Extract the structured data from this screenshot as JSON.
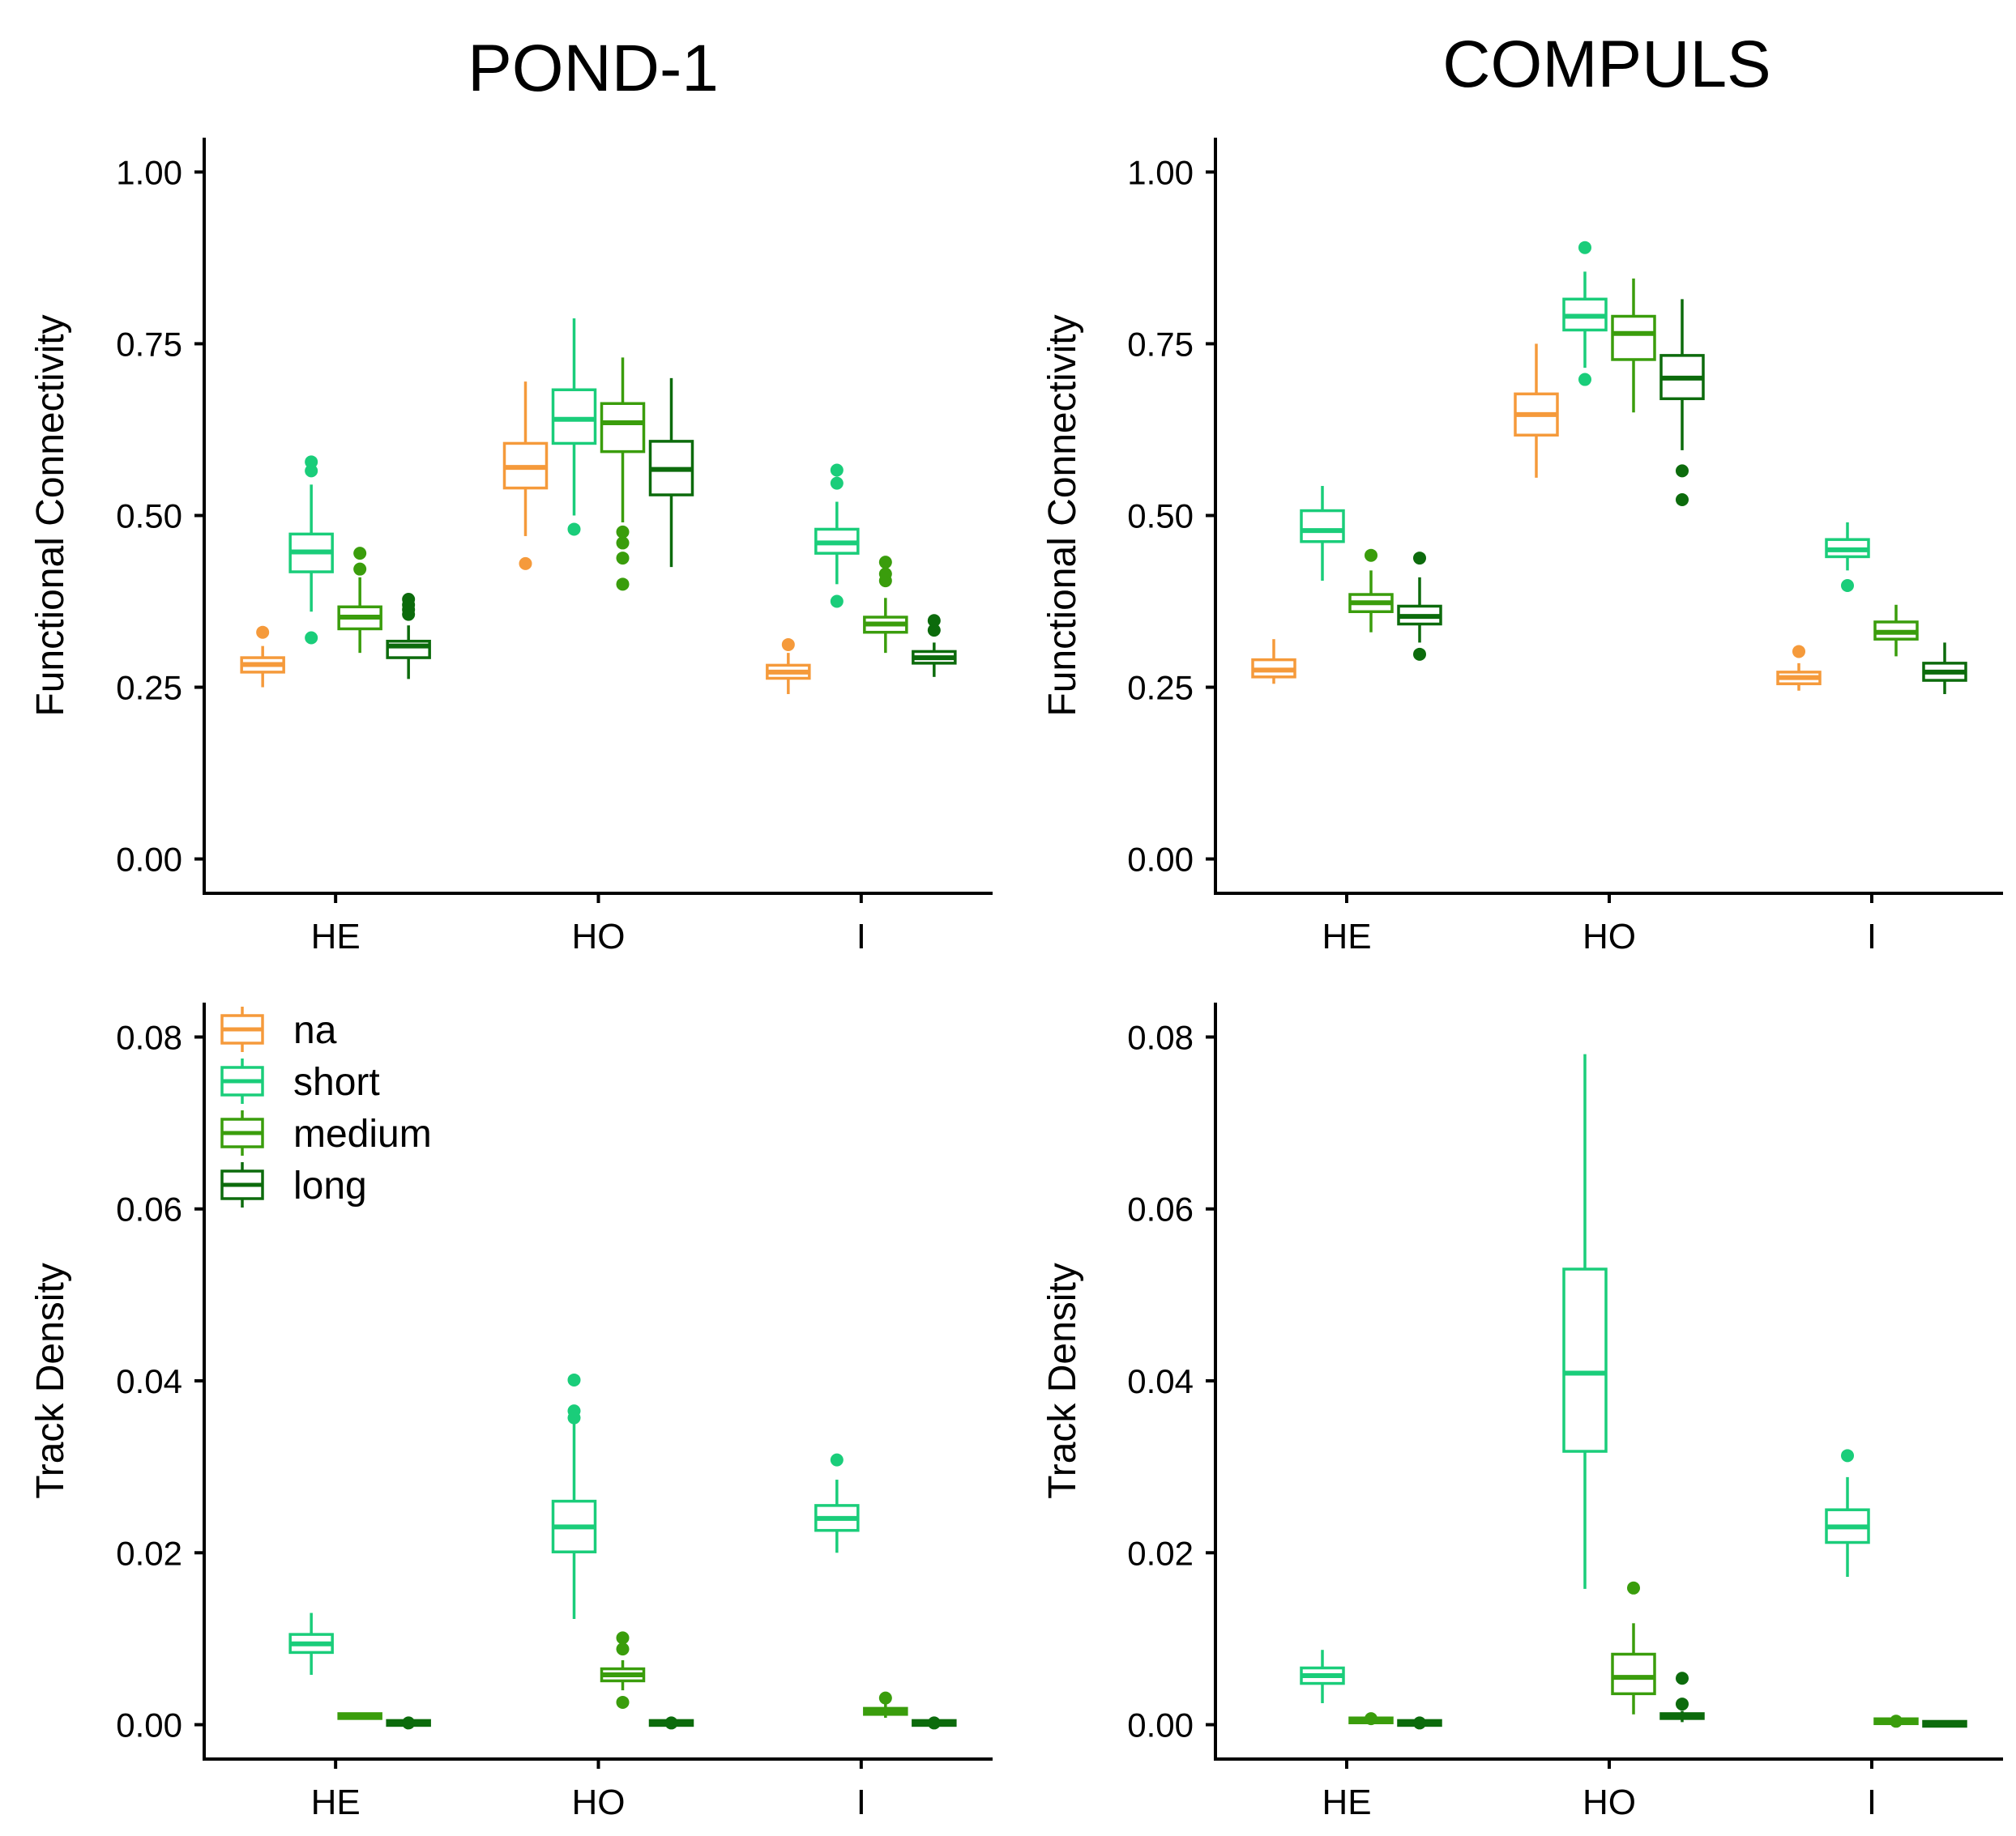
{
  "column_titles": [
    "POND-1",
    "COMPULS"
  ],
  "colors": {
    "na": "#f59a3b",
    "short": "#1acd7a",
    "medium": "#3a9d0c",
    "long": "#0c6b0c"
  },
  "legend": {
    "entries": [
      {
        "key": "na",
        "label": "na"
      },
      {
        "key": "short",
        "label": "short"
      },
      {
        "key": "medium",
        "label": "medium"
      },
      {
        "key": "long",
        "label": "long"
      }
    ]
  },
  "chart_data": [
    {
      "type": "box",
      "panel": "POND-1 / Functional Connectivity",
      "title": "POND-1",
      "ylabel": "Functional Connectivity",
      "categories": [
        "HE",
        "HO",
        "I"
      ],
      "ylim": [
        -0.05,
        1.05
      ],
      "yticks": [
        0,
        0.25,
        0.5,
        0.75,
        1.0
      ],
      "ytick_labels": [
        "0.00",
        "0.25",
        "0.50",
        "0.75",
        "1.00"
      ],
      "series": [
        {
          "name": "na",
          "boxes": [
            {
              "low": 0.25,
              "q1": 0.272,
              "median": 0.283,
              "q3": 0.293,
              "high": 0.31,
              "outliers": [
                0.33
              ]
            },
            {
              "low": 0.47,
              "q1": 0.54,
              "median": 0.57,
              "q3": 0.605,
              "high": 0.695,
              "outliers": [
                0.43
              ]
            },
            {
              "low": 0.24,
              "q1": 0.263,
              "median": 0.272,
              "q3": 0.282,
              "high": 0.3,
              "outliers": [
                0.312
              ]
            }
          ]
        },
        {
          "name": "short",
          "boxes": [
            {
              "low": 0.36,
              "q1": 0.418,
              "median": 0.447,
              "q3": 0.473,
              "high": 0.545,
              "outliers": [
                0.322,
                0.565,
                0.578
              ]
            },
            {
              "low": 0.5,
              "q1": 0.605,
              "median": 0.64,
              "q3": 0.683,
              "high": 0.787,
              "outliers": [
                0.48
              ]
            },
            {
              "low": 0.4,
              "q1": 0.445,
              "median": 0.46,
              "q3": 0.48,
              "high": 0.52,
              "outliers": [
                0.375,
                0.547,
                0.566
              ]
            }
          ]
        },
        {
          "name": "medium",
          "boxes": [
            {
              "low": 0.3,
              "q1": 0.335,
              "median": 0.352,
              "q3": 0.367,
              "high": 0.41,
              "outliers": [
                0.422,
                0.445
              ]
            },
            {
              "low": 0.49,
              "q1": 0.593,
              "median": 0.635,
              "q3": 0.663,
              "high": 0.73,
              "outliers": [
                0.4,
                0.438,
                0.46,
                0.476
              ]
            },
            {
              "low": 0.3,
              "q1": 0.33,
              "median": 0.342,
              "q3": 0.352,
              "high": 0.38,
              "outliers": [
                0.405,
                0.415,
                0.432
              ]
            }
          ]
        },
        {
          "name": "long",
          "boxes": [
            {
              "low": 0.262,
              "q1": 0.293,
              "median": 0.31,
              "q3": 0.317,
              "high": 0.34,
              "outliers": [
                0.356,
                0.363,
                0.37,
                0.378
              ]
            },
            {
              "low": 0.425,
              "q1": 0.53,
              "median": 0.567,
              "q3": 0.608,
              "high": 0.7,
              "outliers": []
            },
            {
              "low": 0.265,
              "q1": 0.285,
              "median": 0.293,
              "q3": 0.302,
              "high": 0.315,
              "outliers": [
                0.333,
                0.347
              ]
            }
          ]
        }
      ]
    },
    {
      "type": "box",
      "panel": "COMPULS / Functional Connectivity",
      "title": "COMPULS",
      "ylabel": "Functional Connectivity",
      "categories": [
        "HE",
        "HO",
        "I"
      ],
      "ylim": [
        -0.05,
        1.05
      ],
      "yticks": [
        0,
        0.25,
        0.5,
        0.75,
        1.0
      ],
      "ytick_labels": [
        "0.00",
        "0.25",
        "0.50",
        "0.75",
        "1.00"
      ],
      "series": [
        {
          "name": "na",
          "boxes": [
            {
              "low": 0.255,
              "q1": 0.265,
              "median": 0.275,
              "q3": 0.29,
              "high": 0.32,
              "outliers": []
            },
            {
              "low": 0.555,
              "q1": 0.617,
              "median": 0.647,
              "q3": 0.677,
              "high": 0.75,
              "outliers": []
            },
            {
              "low": 0.245,
              "q1": 0.255,
              "median": 0.264,
              "q3": 0.272,
              "high": 0.285,
              "outliers": [
                0.302
              ]
            }
          ]
        },
        {
          "name": "short",
          "boxes": [
            {
              "low": 0.405,
              "q1": 0.462,
              "median": 0.478,
              "q3": 0.507,
              "high": 0.543,
              "outliers": []
            },
            {
              "low": 0.715,
              "q1": 0.77,
              "median": 0.79,
              "q3": 0.815,
              "high": 0.855,
              "outliers": [
                0.698,
                0.89
              ]
            },
            {
              "low": 0.42,
              "q1": 0.44,
              "median": 0.45,
              "q3": 0.465,
              "high": 0.49,
              "outliers": [
                0.398
              ]
            }
          ]
        },
        {
          "name": "medium",
          "boxes": [
            {
              "low": 0.33,
              "q1": 0.36,
              "median": 0.373,
              "q3": 0.385,
              "high": 0.42,
              "outliers": [
                0.442
              ]
            },
            {
              "low": 0.65,
              "q1": 0.727,
              "median": 0.765,
              "q3": 0.79,
              "high": 0.845,
              "outliers": []
            },
            {
              "low": 0.295,
              "q1": 0.32,
              "median": 0.33,
              "q3": 0.345,
              "high": 0.37,
              "outliers": []
            }
          ]
        },
        {
          "name": "long",
          "boxes": [
            {
              "low": 0.315,
              "q1": 0.342,
              "median": 0.353,
              "q3": 0.368,
              "high": 0.41,
              "outliers": [
                0.298,
                0.438
              ]
            },
            {
              "low": 0.595,
              "q1": 0.67,
              "median": 0.7,
              "q3": 0.733,
              "high": 0.815,
              "outliers": [
                0.523,
                0.565
              ]
            },
            {
              "low": 0.24,
              "q1": 0.26,
              "median": 0.272,
              "q3": 0.285,
              "high": 0.315,
              "outliers": []
            }
          ]
        }
      ]
    },
    {
      "type": "box",
      "panel": "POND-1 / Track Density",
      "ylabel": "Track Density",
      "categories": [
        "HE",
        "HO",
        "I"
      ],
      "ylim": [
        -0.004,
        0.084
      ],
      "yticks": [
        0,
        0.02,
        0.04,
        0.06,
        0.08
      ],
      "ytick_labels": [
        "0.00",
        "0.02",
        "0.04",
        "0.06",
        "0.08"
      ],
      "series": [
        {
          "name": "na",
          "boxes": [
            null,
            null,
            null
          ]
        },
        {
          "name": "short",
          "boxes": [
            {
              "low": 0.0058,
              "q1": 0.0084,
              "median": 0.0094,
              "q3": 0.0105,
              "high": 0.013,
              "outliers": []
            },
            {
              "low": 0.0123,
              "q1": 0.0201,
              "median": 0.023,
              "q3": 0.026,
              "high": 0.035,
              "outliers": [
                0.0357,
                0.0365,
                0.0401
              ]
            },
            {
              "low": 0.02,
              "q1": 0.0226,
              "median": 0.024,
              "q3": 0.0255,
              "high": 0.0285,
              "outliers": [
                0.0308
              ]
            }
          ]
        },
        {
          "name": "medium",
          "boxes": [
            {
              "low": 0.0008,
              "q1": 0.0009,
              "median": 0.001,
              "q3": 0.0011,
              "high": 0.0012,
              "outliers": []
            },
            {
              "low": 0.004,
              "q1": 0.0051,
              "median": 0.0058,
              "q3": 0.0065,
              "high": 0.0075,
              "outliers": [
                0.0026,
                0.0088,
                0.0101
              ]
            },
            {
              "low": 0.0008,
              "q1": 0.0012,
              "median": 0.0016,
              "q3": 0.0019,
              "high": 0.0024,
              "outliers": [
                0.0031
              ]
            }
          ]
        },
        {
          "name": "long",
          "boxes": [
            {
              "low": 0.0,
              "q1": 0.0001,
              "median": 0.0002,
              "q3": 0.0003,
              "high": 0.0004,
              "outliers": [
                0.0002
              ]
            },
            {
              "low": 0.0,
              "q1": 0.0001,
              "median": 0.0002,
              "q3": 0.0003,
              "high": 0.0004,
              "outliers": [
                0.0002
              ]
            },
            {
              "low": 0.0,
              "q1": 0.0001,
              "median": 0.0002,
              "q3": 0.0003,
              "high": 0.0004,
              "outliers": [
                0.0002
              ]
            }
          ]
        }
      ]
    },
    {
      "type": "box",
      "panel": "COMPULS / Track Density",
      "ylabel": "Track Density",
      "categories": [
        "HE",
        "HO",
        "I"
      ],
      "ylim": [
        -0.004,
        0.084
      ],
      "yticks": [
        0,
        0.02,
        0.04,
        0.06,
        0.08
      ],
      "ytick_labels": [
        "0.00",
        "0.02",
        "0.04",
        "0.06",
        "0.08"
      ],
      "series": [
        {
          "name": "na",
          "boxes": [
            null,
            null,
            null
          ]
        },
        {
          "name": "short",
          "boxes": [
            {
              "low": 0.0025,
              "q1": 0.0048,
              "median": 0.0057,
              "q3": 0.0066,
              "high": 0.0087,
              "outliers": []
            },
            {
              "low": 0.0158,
              "q1": 0.0318,
              "median": 0.0409,
              "q3": 0.053,
              "high": 0.078,
              "outliers": []
            },
            {
              "low": 0.0172,
              "q1": 0.0212,
              "median": 0.023,
              "q3": 0.025,
              "high": 0.0288,
              "outliers": [
                0.0313
              ]
            }
          ]
        },
        {
          "name": "medium",
          "boxes": [
            {
              "low": 0.0003,
              "q1": 0.0004,
              "median": 0.0005,
              "q3": 0.0006,
              "high": 0.0007,
              "outliers": [
                0.0007
              ]
            },
            {
              "low": 0.0012,
              "q1": 0.0036,
              "median": 0.0055,
              "q3": 0.0082,
              "high": 0.0118,
              "outliers": [
                0.0159
              ]
            },
            {
              "low": 0.0002,
              "q1": 0.0003,
              "median": 0.0004,
              "q3": 0.0005,
              "high": 0.0006,
              "outliers": [
                0.0004
              ]
            }
          ]
        },
        {
          "name": "long",
          "boxes": [
            {
              "low": 0.0,
              "q1": 0.0001,
              "median": 0.0002,
              "q3": 0.0003,
              "high": 0.0004,
              "outliers": [
                0.0002
              ]
            },
            {
              "low": 0.0003,
              "q1": 0.0008,
              "median": 0.001,
              "q3": 0.0012,
              "high": 0.0016,
              "outliers": [
                0.0024,
                0.0054
              ]
            },
            {
              "low": 0.0,
              "q1": 0.0001,
              "median": 0.0001,
              "q3": 0.0002,
              "high": 0.0003,
              "outliers": []
            }
          ]
        }
      ]
    }
  ]
}
